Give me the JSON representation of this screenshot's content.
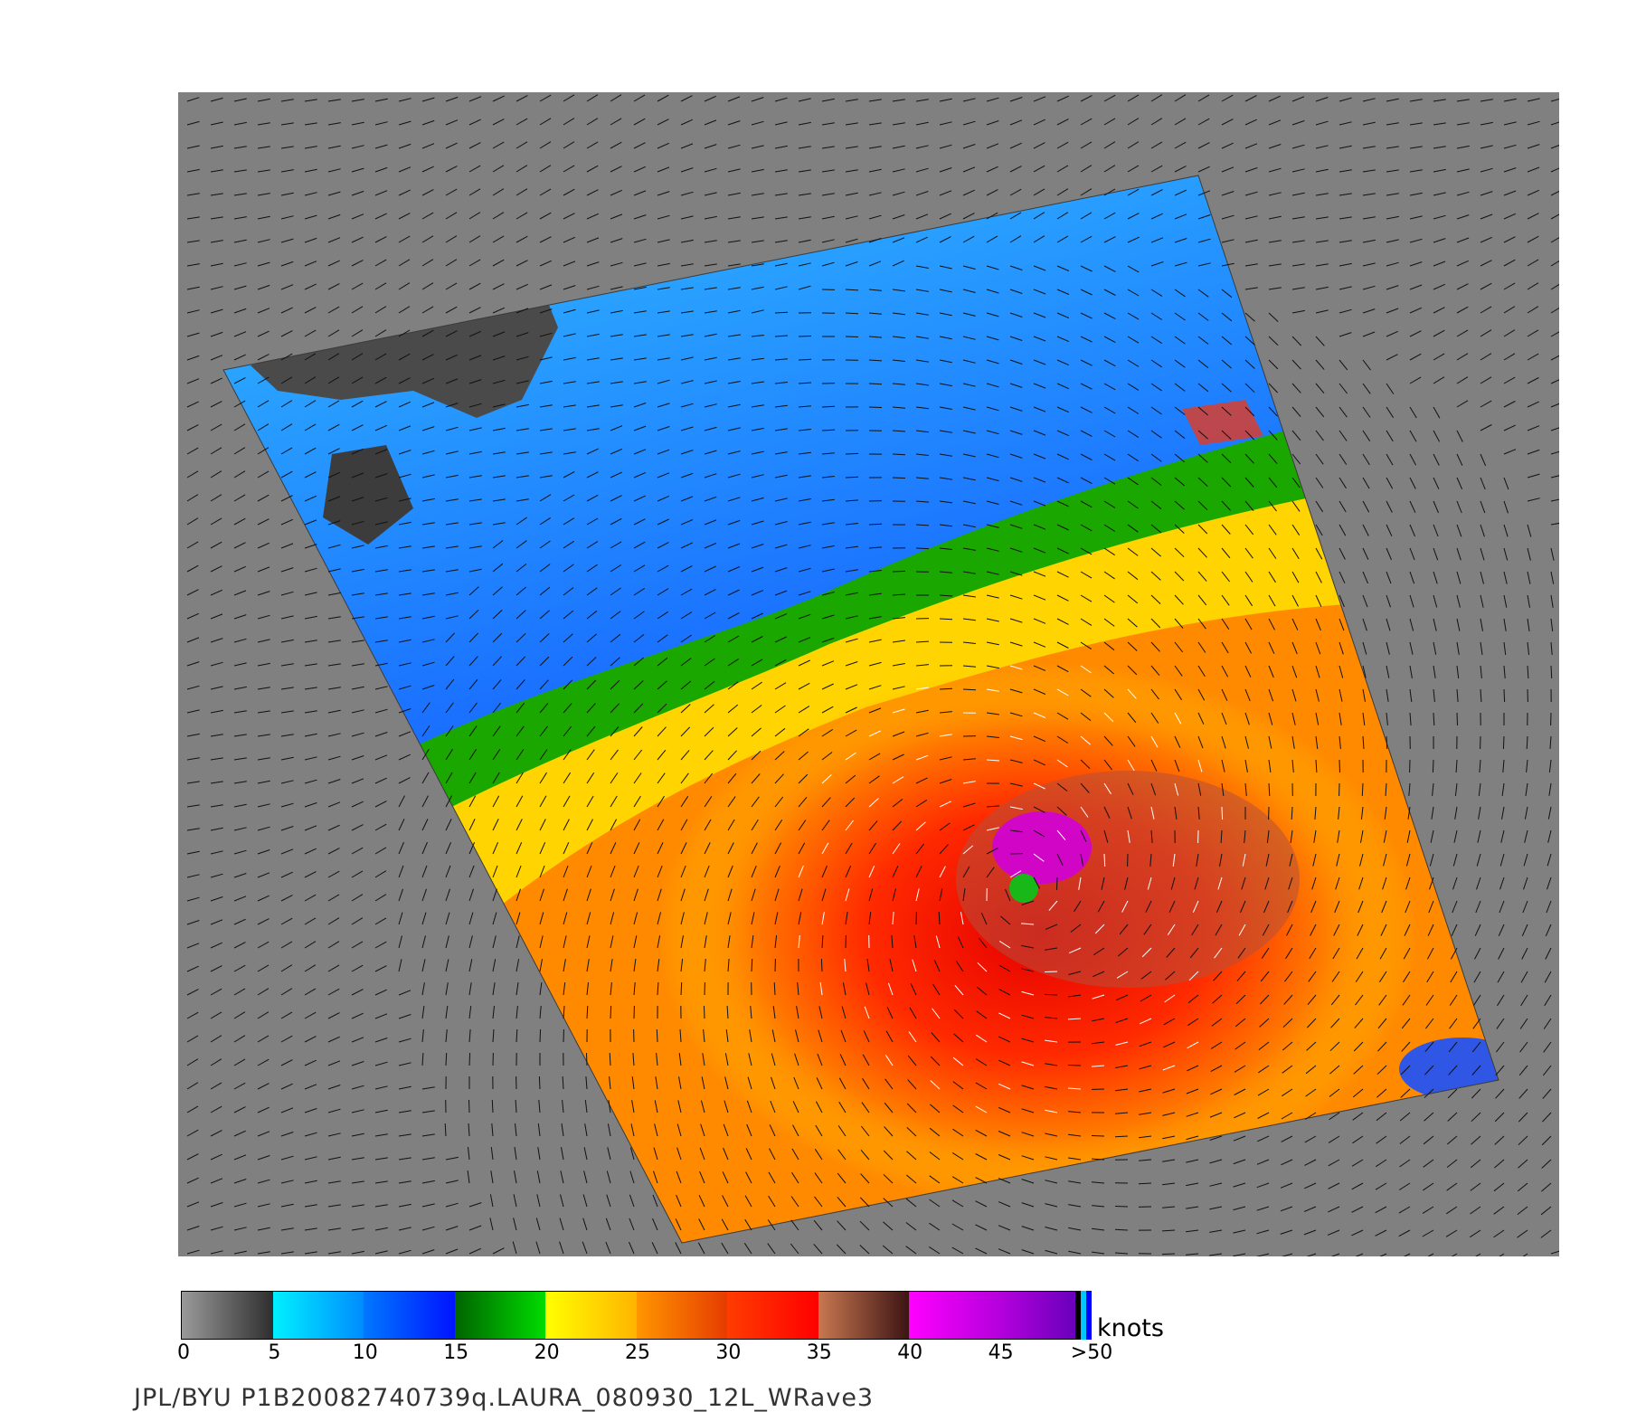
{
  "colorbar": {
    "units": "knots",
    "ticks": [
      "0",
      "5",
      "10",
      "15",
      "20",
      "25",
      "30",
      "35",
      "40",
      "45",
      ">50"
    ],
    "segments": [
      {
        "from": "#9a9a9a",
        "to": "#2e2e2e"
      },
      {
        "from": "#00f0ff",
        "to": "#008cff"
      },
      {
        "from": "#0078ff",
        "to": "#0014ff"
      },
      {
        "from": "#006400",
        "to": "#00dc00"
      },
      {
        "from": "#ffff00",
        "to": "#ffb400"
      },
      {
        "from": "#ff9600",
        "to": "#e63c00"
      },
      {
        "from": "#ff3c00",
        "to": "#ff0000"
      },
      {
        "from": "#c87850",
        "to": "#3c1414"
      },
      {
        "from": "#ff00ff",
        "to": "#b400dc"
      },
      {
        "from": "#b400dc",
        "to": "#5a00b4"
      }
    ],
    "tail_colors": [
      "#000000",
      "#00c8ff",
      "#0000ff"
    ]
  },
  "footer": {
    "credit": "JPL/BYU   P1B20082740739q.LAURA_080930_12L_WRave3"
  },
  "map": {
    "background_color": "#808080",
    "land_color": "#4a4a4a",
    "storm_name": "LAURA"
  }
}
